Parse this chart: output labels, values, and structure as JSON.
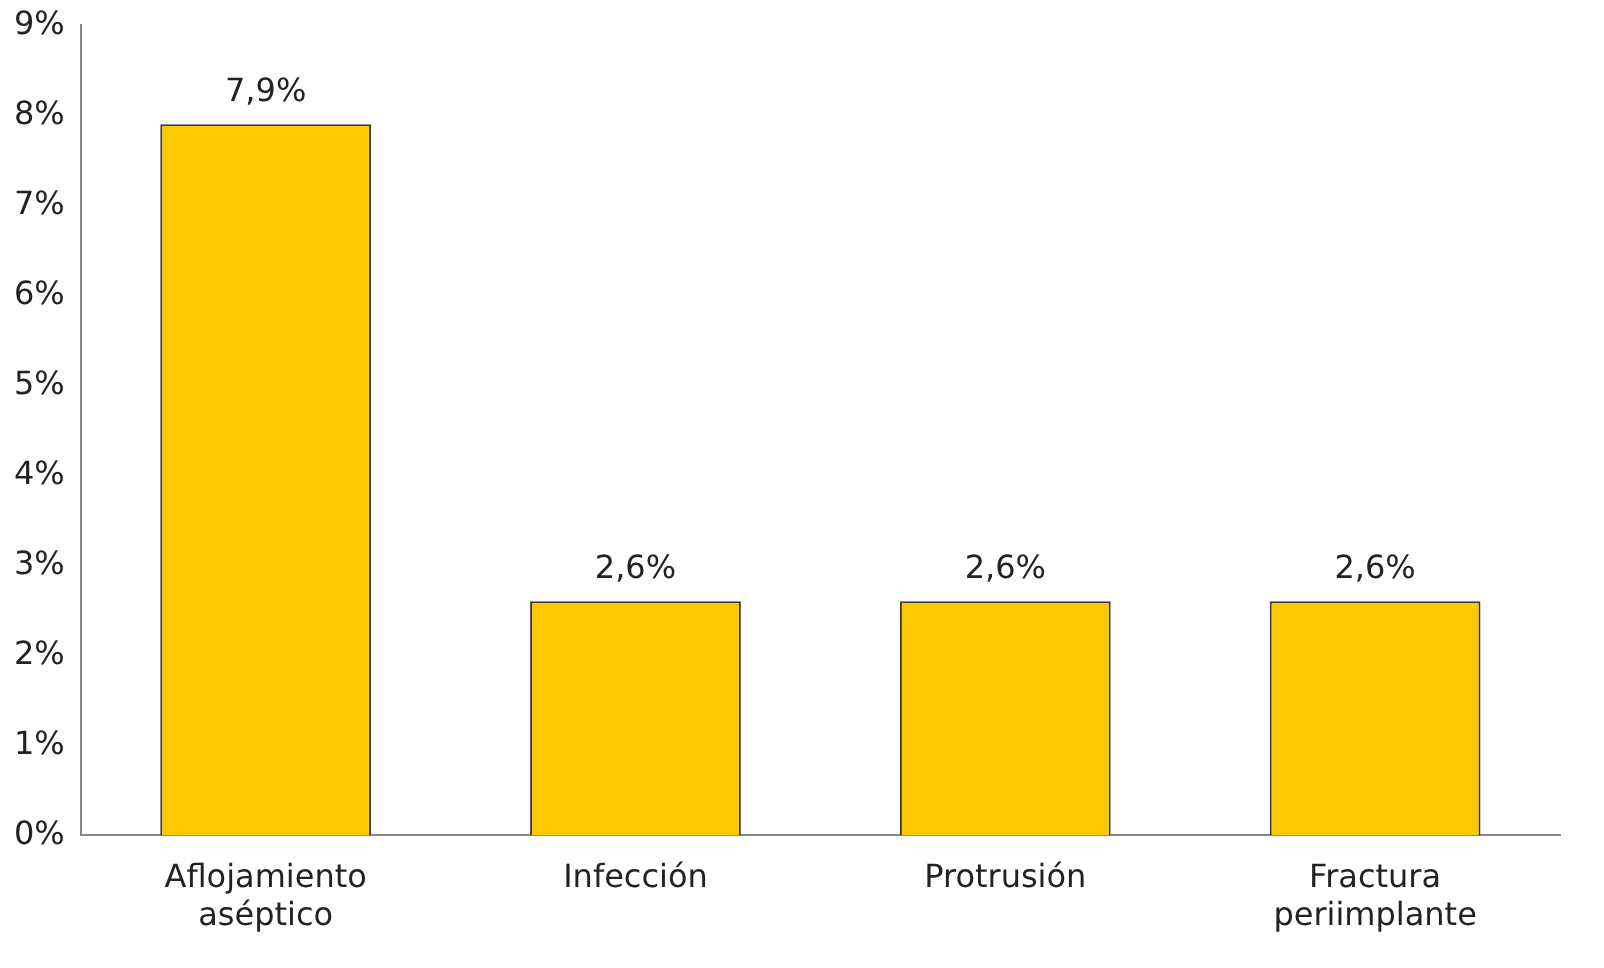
{
  "chart_data": {
    "type": "bar",
    "categories": [
      "Aflojamiento aséptico",
      "Infección",
      "Protrusión",
      "Fractura periimplante"
    ],
    "values": [
      7.9,
      2.6,
      2.6,
      2.6
    ],
    "value_labels": [
      "7,9%",
      "2,6%",
      "2,6%",
      "2,6%"
    ],
    "color": "#fcc800",
    "ylim": [
      0,
      9
    ],
    "yticks": [
      {
        "value": 0,
        "label": "0%"
      },
      {
        "value": 1,
        "label": "1%"
      },
      {
        "value": 2,
        "label": "2%"
      },
      {
        "value": 3,
        "label": "3%"
      },
      {
        "value": 4,
        "label": "4%"
      },
      {
        "value": 5,
        "label": "5%"
      },
      {
        "value": 6,
        "label": "6%"
      },
      {
        "value": 7,
        "label": "7%"
      },
      {
        "value": 8,
        "label": "8%"
      },
      {
        "value": 9,
        "label": "9%"
      }
    ],
    "grid": false,
    "legend": false
  }
}
